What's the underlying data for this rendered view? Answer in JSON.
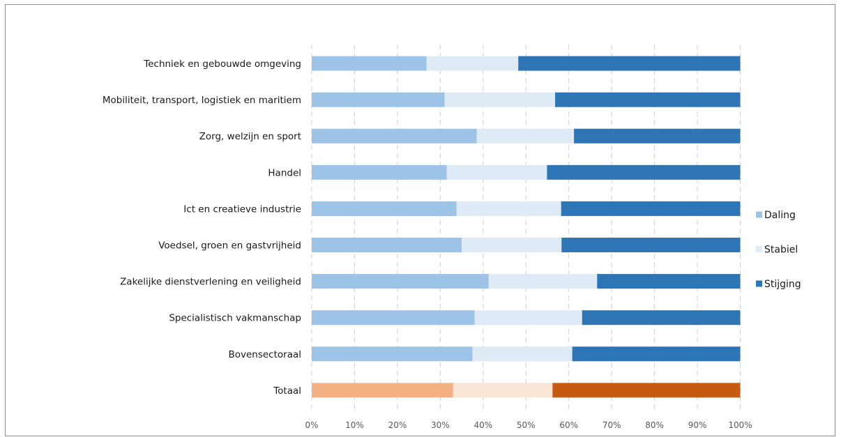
{
  "chart_data": {
    "type": "bar",
    "orientation": "horizontal",
    "stacked": "percent",
    "categories": [
      "Techniek en gebouwde omgeving",
      "Mobiliteit, transport, logistiek en maritiem",
      "Zorg, welzijn en sport",
      "Handel",
      "Ict en creatieve industrie",
      "Voedsel, groen en gastvrijheid",
      "Zakelijke dienstverlening en veiligheid",
      "Specialistisch vakmanschap",
      "Bovensectoraal",
      "Totaal"
    ],
    "series": [
      {
        "name": "Daling",
        "values": [
          26.8,
          31.0,
          38.5,
          31.5,
          33.8,
          35.0,
          41.3,
          38.0,
          37.5,
          33.0
        ]
      },
      {
        "name": "Stabiel",
        "values": [
          21.4,
          25.8,
          22.7,
          23.4,
          24.4,
          23.3,
          25.3,
          25.1,
          23.3,
          23.2
        ]
      },
      {
        "name": "Stijging",
        "values": [
          51.8,
          43.2,
          38.8,
          45.1,
          41.8,
          41.7,
          33.4,
          36.9,
          39.2,
          43.8
        ]
      }
    ],
    "colors": {
      "Daling": "#9dc3e6",
      "Stabiel": "#deebf7",
      "Stijging": "#2e75b6"
    },
    "highlight_category": "Totaal",
    "highlight_colors": {
      "Daling": "#f4b183",
      "Stabiel": "#fbe5d6",
      "Stijging": "#c55a11"
    },
    "xlim": [
      0,
      100
    ],
    "x_ticks": [
      "0%",
      "10%",
      "20%",
      "30%",
      "40%",
      "50%",
      "60%",
      "70%",
      "80%",
      "90%",
      "100%"
    ],
    "grid": "vertical-dashed",
    "legend_position": "right",
    "title": "",
    "xlabel": "",
    "ylabel": ""
  }
}
